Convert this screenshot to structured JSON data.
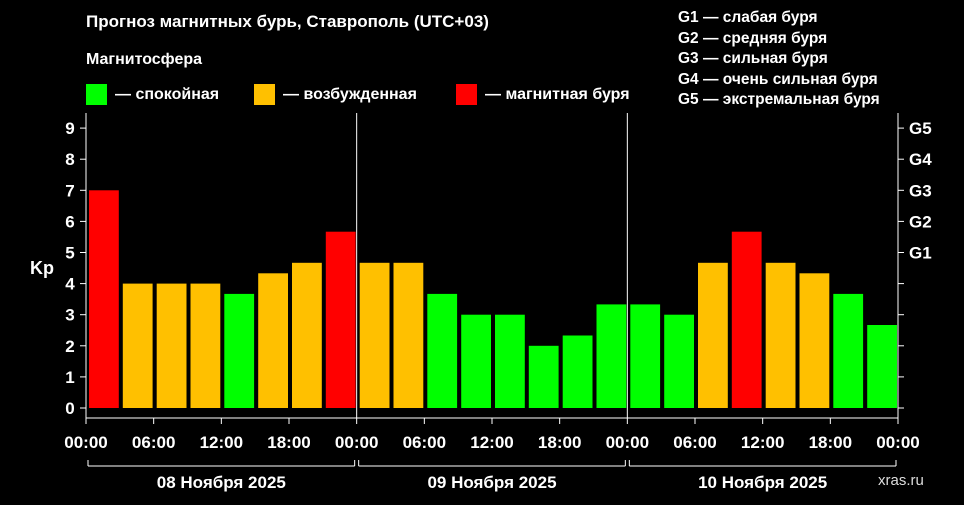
{
  "title": "Прогноз магнитных бурь, Ставрополь (UTC+03)",
  "subtitle": "Магнитосфера",
  "legend": [
    {
      "label": "— спокойная",
      "color": "#00ff00"
    },
    {
      "label": "— возбужденная",
      "color": "#ffc000"
    },
    {
      "label": "— магнитная буря",
      "color": "#ff0000"
    }
  ],
  "g_scale": [
    "G1 — слабая буря",
    "G2 — средняя буря",
    "G3 — сильная буря",
    "G4 — очень сильная буря",
    "G5 — экстремальная буря"
  ],
  "watermark": "xras.ru",
  "chart_data": {
    "type": "bar",
    "ylabel": "Kp",
    "ylim": [
      0,
      9
    ],
    "y_ticks": [
      "0",
      "1",
      "2",
      "3",
      "4",
      "5",
      "6",
      "7",
      "8",
      "9"
    ],
    "right_axis_ticks": [
      "G1",
      "G2",
      "G3",
      "G4",
      "G5"
    ],
    "x_tick_labels": [
      "00:00",
      "06:00",
      "12:00",
      "18:00",
      "00:00",
      "06:00",
      "12:00",
      "18:00",
      "00:00",
      "06:00",
      "12:00",
      "18:00",
      "00:00"
    ],
    "days": [
      "08 Ноября 2025",
      "09 Ноября 2025",
      "10 Ноября 2025"
    ],
    "colors": {
      "quiet": "#00ff00",
      "active": "#ffc000",
      "storm": "#ff0000"
    },
    "values": [
      7.0,
      4.0,
      4.0,
      4.0,
      3.67,
      4.33,
      4.67,
      5.67,
      4.67,
      4.67,
      3.67,
      3.0,
      3.0,
      2.0,
      2.33,
      3.33,
      3.33,
      3.0,
      4.67,
      5.67,
      4.67,
      4.33,
      3.67,
      2.67
    ],
    "levels": [
      "storm",
      "active",
      "active",
      "active",
      "quiet",
      "active",
      "active",
      "storm",
      "active",
      "active",
      "quiet",
      "quiet",
      "quiet",
      "quiet",
      "quiet",
      "quiet",
      "quiet",
      "quiet",
      "active",
      "storm",
      "active",
      "active",
      "quiet",
      "quiet"
    ]
  }
}
